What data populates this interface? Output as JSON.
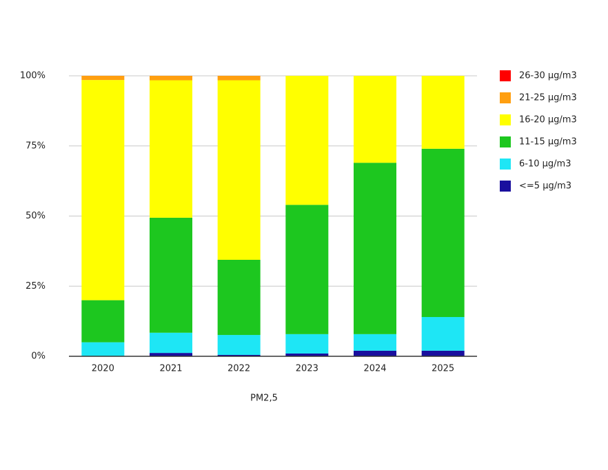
{
  "chart_data": {
    "type": "bar",
    "stacked": true,
    "x_label": "PM2,5",
    "categories": [
      "2020",
      "2021",
      "2022",
      "2023",
      "2024",
      "2025"
    ],
    "series": [
      {
        "name": "<=5 µg/m3",
        "color": "#1a0f9e",
        "values": [
          0,
          1.2,
          0.5,
          1,
          2,
          2
        ]
      },
      {
        "name": "6-10 µg/m3",
        "color": "#1ee6f5",
        "values": [
          5,
          7.2,
          7.1,
          6.9,
          5.9,
          12
        ]
      },
      {
        "name": "11-15 µg/m3",
        "color": "#1dc71f",
        "values": [
          15,
          41,
          26.8,
          46.1,
          61.1,
          60
        ]
      },
      {
        "name": "16-20 µg/m3",
        "color": "#ffff00",
        "values": [
          78.5,
          49,
          64,
          46,
          31,
          26
        ]
      },
      {
        "name": "21-25 µg/m3",
        "color": "#ff9f10",
        "values": [
          1.5,
          1.6,
          1.6,
          0,
          0,
          0
        ]
      },
      {
        "name": "26-30 µg/m3",
        "color": "#ff0000",
        "values": [
          0,
          0,
          0,
          0,
          0,
          0
        ]
      }
    ],
    "ylim": [
      0,
      100
    ],
    "yticks": [
      {
        "value": 0,
        "label": "0%"
      },
      {
        "value": 25,
        "label": "25%"
      },
      {
        "value": 50,
        "label": "50%"
      },
      {
        "value": 75,
        "label": "75%"
      },
      {
        "value": 100,
        "label": "100%"
      }
    ],
    "grid": true,
    "legend": "right"
  }
}
